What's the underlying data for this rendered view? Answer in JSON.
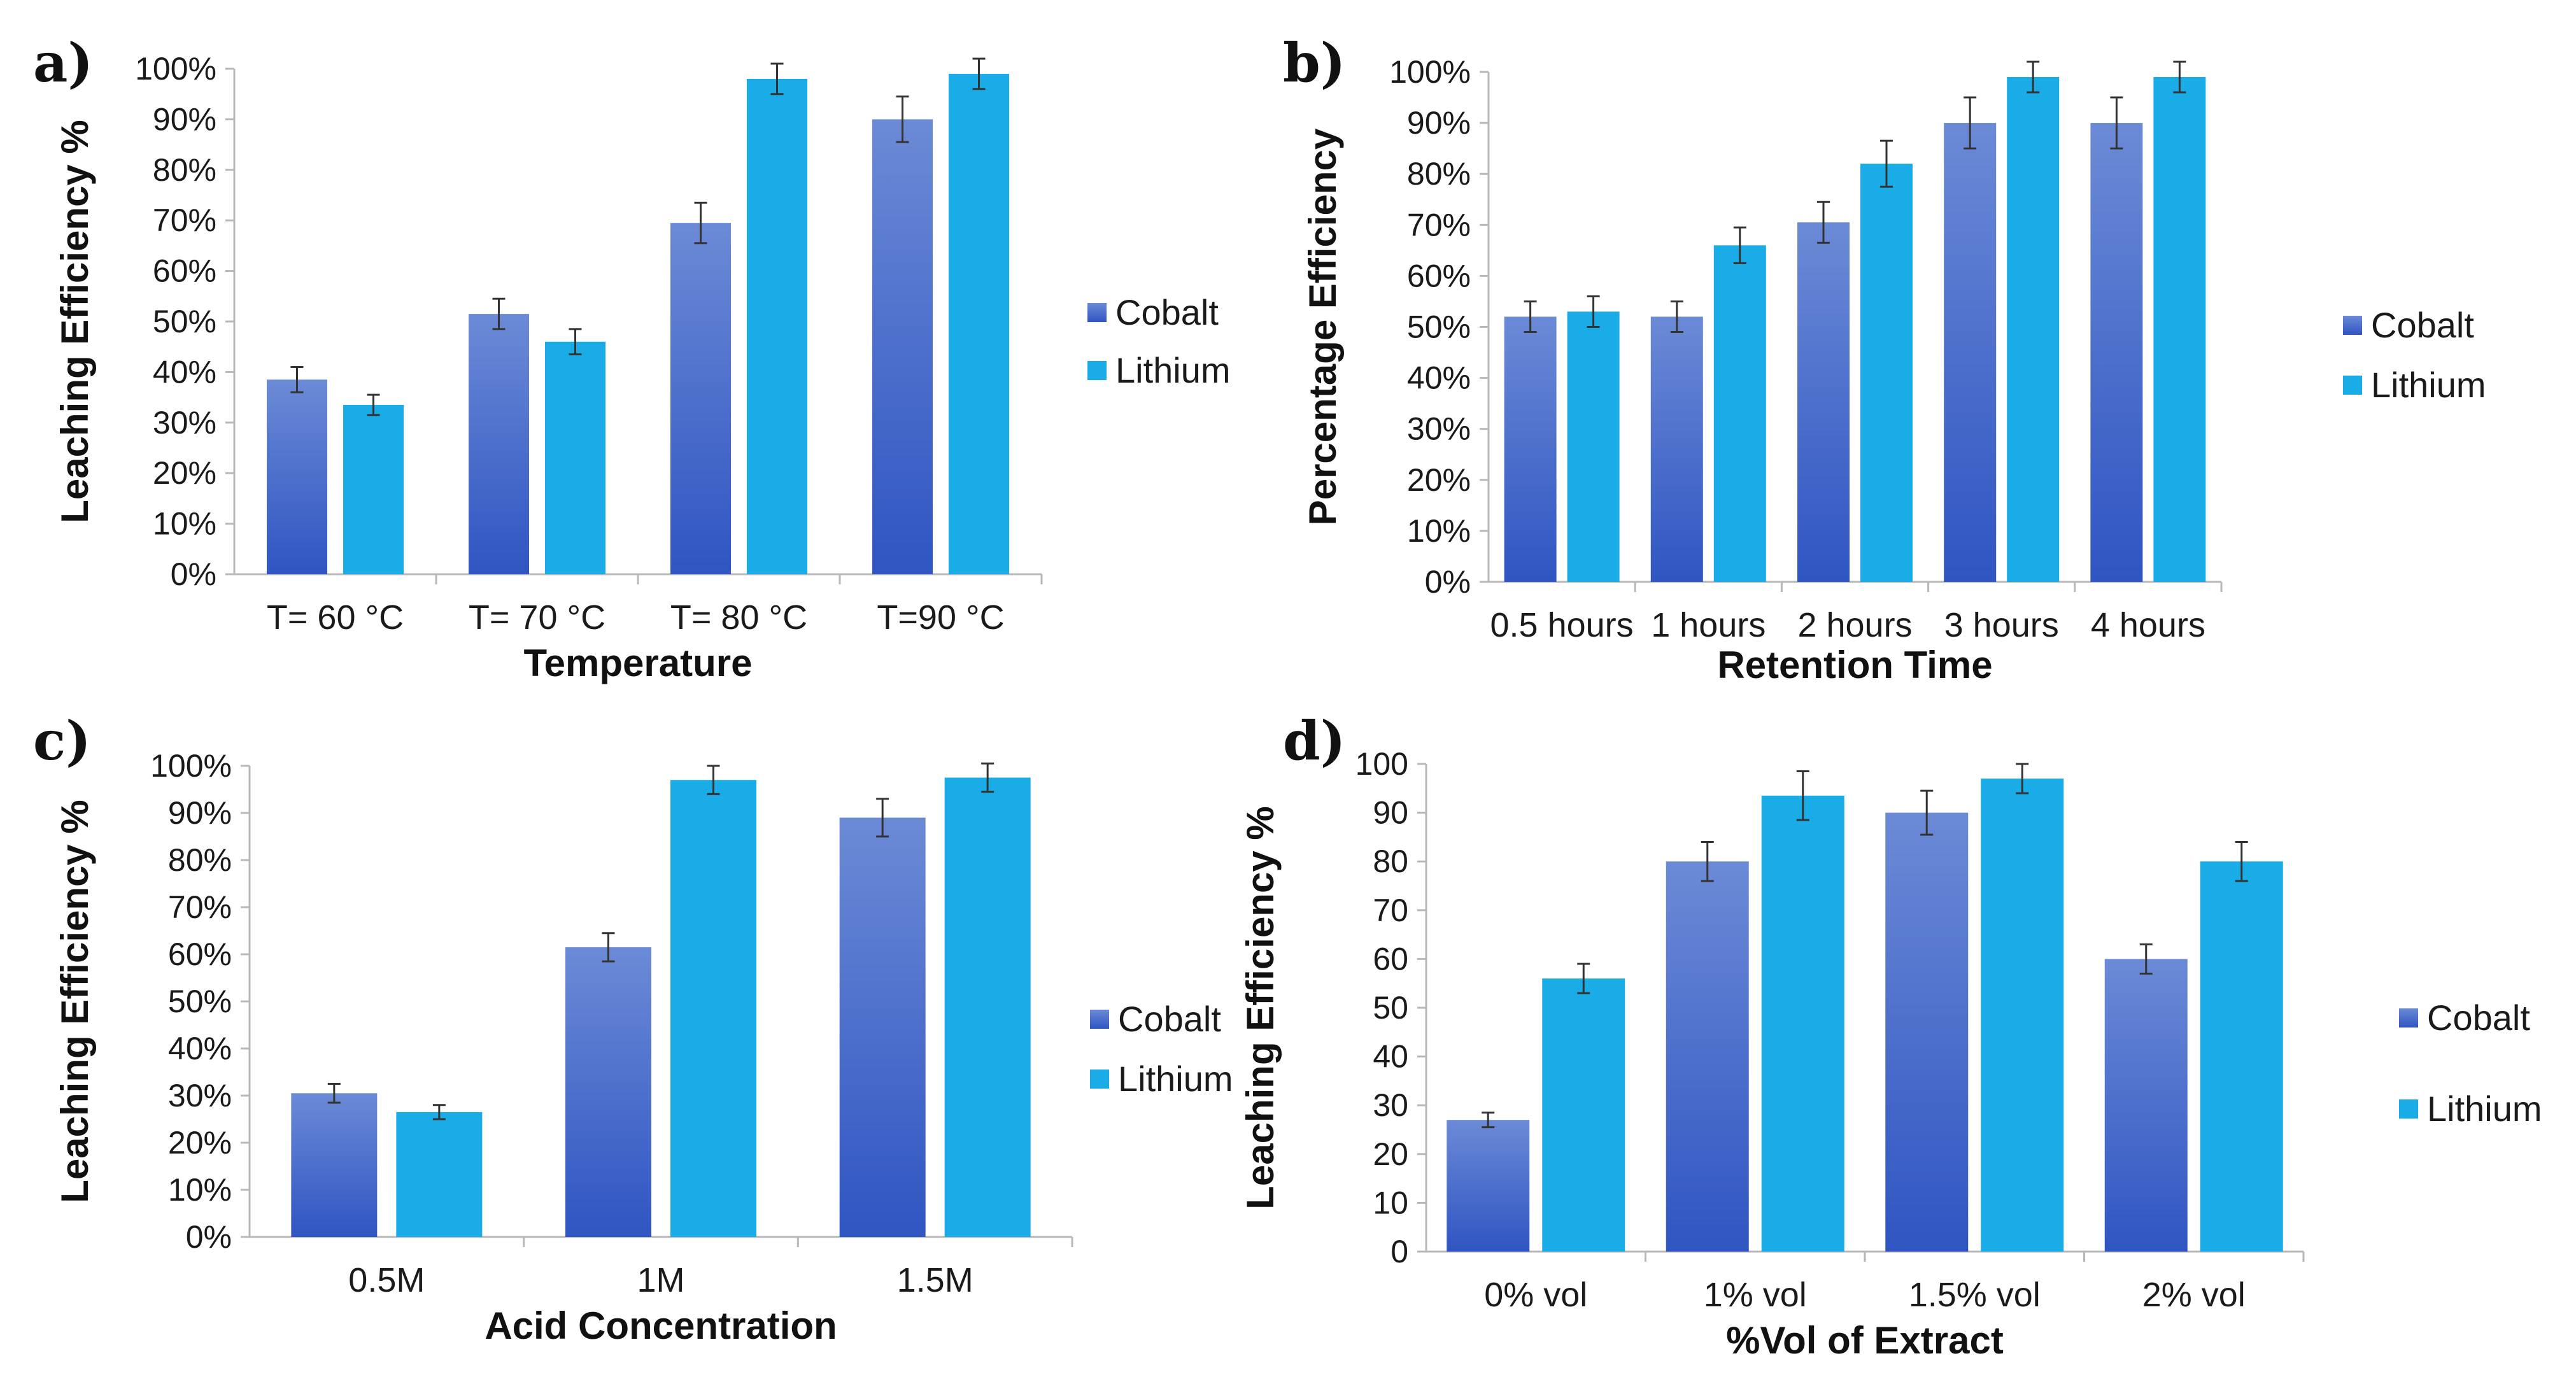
{
  "colors": {
    "cobalt_top": "#6b8ad6",
    "cobalt_bottom": "#2f55c2",
    "lithium": "#1aace6"
  },
  "chart_data": [
    {
      "type": "bar",
      "panel": "a)",
      "xlabel": "Temperature",
      "ylabel": "Leaching Efficiency %",
      "ylim": [
        0,
        100
      ],
      "y_ticks": [
        "0%",
        "10%",
        "20%",
        "30%",
        "40%",
        "50%",
        "60%",
        "70%",
        "80%",
        "90%",
        "100%"
      ],
      "categories": [
        "T= 60 °C",
        "T= 70 °C",
        "T= 80 °C",
        "T=90 °C"
      ],
      "series": [
        {
          "name": "Cobalt",
          "values": [
            38.5,
            51.5,
            69.5,
            90
          ],
          "errors": [
            2.5,
            3,
            4,
            4.5
          ]
        },
        {
          "name": "Lithium",
          "values": [
            33.5,
            46,
            98,
            99
          ],
          "errors": [
            2,
            2.5,
            3,
            3
          ]
        }
      ],
      "legend": "right"
    },
    {
      "type": "bar",
      "panel": "b)",
      "xlabel": "Retention Time",
      "ylabel": "Percentage Efficiency",
      "ylim": [
        0,
        100
      ],
      "y_ticks": [
        "0%",
        "10%",
        "20%",
        "30%",
        "40%",
        "50%",
        "60%",
        "70%",
        "80%",
        "90%",
        "100%"
      ],
      "categories": [
        "0.5 hours",
        "1 hours",
        "2 hours",
        "3 hours",
        "4 hours"
      ],
      "series": [
        {
          "name": "Cobalt",
          "values": [
            52,
            52,
            70.5,
            90,
            90
          ],
          "errors": [
            3,
            3,
            4,
            5,
            5
          ]
        },
        {
          "name": "Lithium",
          "values": [
            53,
            66,
            82,
            99,
            99
          ],
          "errors": [
            3,
            3.5,
            4.5,
            3,
            3
          ]
        }
      ],
      "legend": "right"
    },
    {
      "type": "bar",
      "panel": "c)",
      "xlabel": "Acid Concentration",
      "ylabel": "Leaching Efficiency %",
      "ylim": [
        0,
        100
      ],
      "y_ticks": [
        "0%",
        "10%",
        "20%",
        "30%",
        "40%",
        "50%",
        "60%",
        "70%",
        "80%",
        "90%",
        "100%"
      ],
      "categories": [
        "0.5M",
        "1M",
        "1.5M"
      ],
      "series": [
        {
          "name": "Cobalt",
          "values": [
            30.5,
            61.5,
            89
          ],
          "errors": [
            2,
            3,
            4
          ]
        },
        {
          "name": "Lithium",
          "values": [
            26.5,
            97,
            97.5
          ],
          "errors": [
            1.5,
            3,
            3
          ]
        }
      ],
      "legend": "right"
    },
    {
      "type": "bar",
      "panel": "d)",
      "xlabel": "%Vol of Extract",
      "ylabel": "Leaching Efficiency %",
      "ylim": [
        0,
        100
      ],
      "y_ticks": [
        "0",
        "10",
        "20",
        "30",
        "40",
        "50",
        "60",
        "70",
        "80",
        "90",
        "100"
      ],
      "categories": [
        "0% vol",
        "1% vol",
        "1.5% vol",
        "2% vol"
      ],
      "series": [
        {
          "name": "Cobalt",
          "values": [
            27,
            80,
            90,
            60
          ],
          "errors": [
            1.5,
            4,
            4.5,
            3
          ]
        },
        {
          "name": "Lithium",
          "values": [
            56,
            93.5,
            97,
            80
          ],
          "errors": [
            3,
            5,
            3,
            4
          ]
        }
      ],
      "legend": "right"
    }
  ]
}
